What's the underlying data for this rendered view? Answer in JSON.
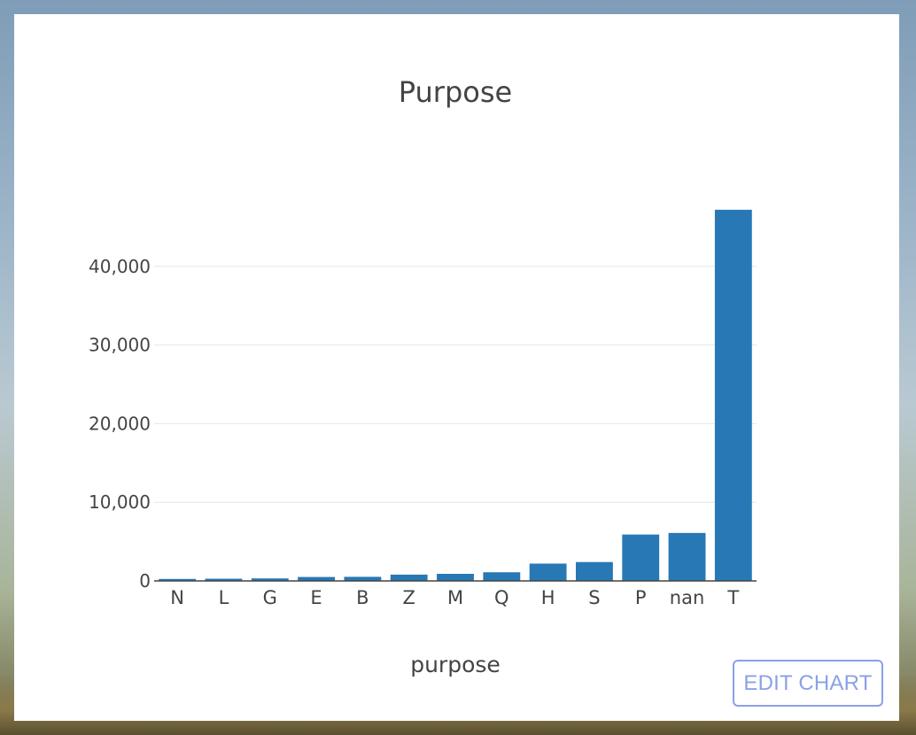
{
  "chart_data": {
    "type": "bar",
    "title": "Purpose",
    "xlabel": "purpose",
    "ylabel": "",
    "categories": [
      "N",
      "L",
      "G",
      "E",
      "B",
      "Z",
      "M",
      "Q",
      "H",
      "S",
      "P",
      "nan",
      "T"
    ],
    "values": [
      250,
      280,
      320,
      500,
      520,
      800,
      900,
      1100,
      2200,
      2400,
      5900,
      6100,
      47200
    ],
    "ylim": [
      0,
      50000
    ],
    "yticks": [
      0,
      10000,
      20000,
      30000,
      40000
    ],
    "ytick_labels": [
      "0",
      "10,000",
      "20,000",
      "30,000",
      "40,000"
    ],
    "grid": true,
    "bar_color": "#2878b5"
  },
  "controls": {
    "edit_chart_label": "EDIT CHART"
  }
}
